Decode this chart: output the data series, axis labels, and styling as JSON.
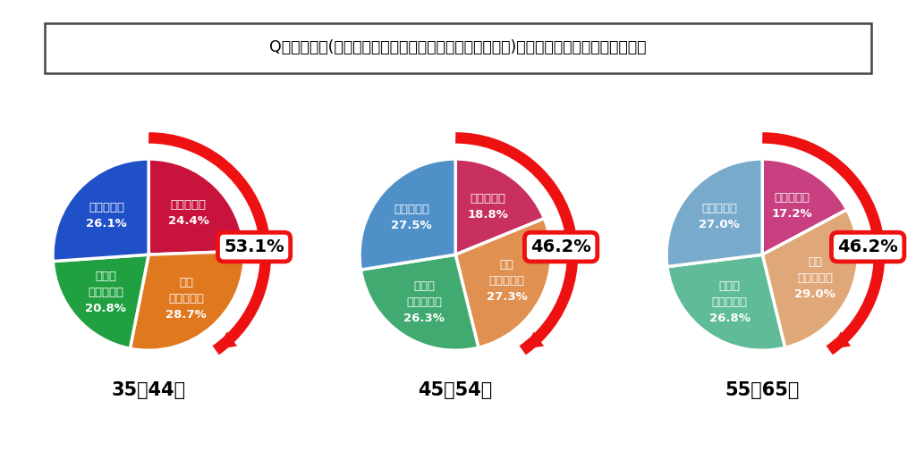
{
  "question": "Q：地方企業(東京・大阪・名古屋などの主要都市を除く)で働く事に興味はありますか？",
  "charts": [
    {
      "label": "35～44歳",
      "highlight": "53.1%",
      "slices": [
        {
          "name": "興味がある",
          "value": 24.4,
          "color": "#C8143C"
        },
        {
          "name": "やや\n興味がある",
          "value": 28.7,
          "color": "#E07820"
        },
        {
          "name": "あまり\n興味はない",
          "value": 20.8,
          "color": "#20A040"
        },
        {
          "name": "興味はない",
          "value": 26.1,
          "color": "#2050C8"
        }
      ]
    },
    {
      "label": "45～54歳",
      "highlight": "46.2%",
      "slices": [
        {
          "name": "興味がある",
          "value": 18.8,
          "color": "#C83060"
        },
        {
          "name": "やや\n興味がある",
          "value": 27.3,
          "color": "#E09050"
        },
        {
          "name": "あまり\n興味はない",
          "value": 26.3,
          "color": "#40AA70"
        },
        {
          "name": "興味はない",
          "value": 27.5,
          "color": "#5090C8"
        }
      ]
    },
    {
      "label": "55～65歳",
      "highlight": "46.2%",
      "slices": [
        {
          "name": "興味がある",
          "value": 17.2,
          "color": "#C84080"
        },
        {
          "name": "やや\n興味がある",
          "value": 29.0,
          "color": "#E0A878"
        },
        {
          "name": "あまり\n興味はない",
          "value": 26.8,
          "color": "#60BB98"
        },
        {
          "name": "興味はない",
          "value": 27.0,
          "color": "#78AACC"
        }
      ]
    }
  ],
  "bg_color": "#FFFFFF",
  "text_color_white": "#FFFFFF",
  "text_color_black": "#000000",
  "arrow_color": "#EE1111",
  "highlight_border_color": "#EE1111",
  "question_box_border": "#444444"
}
